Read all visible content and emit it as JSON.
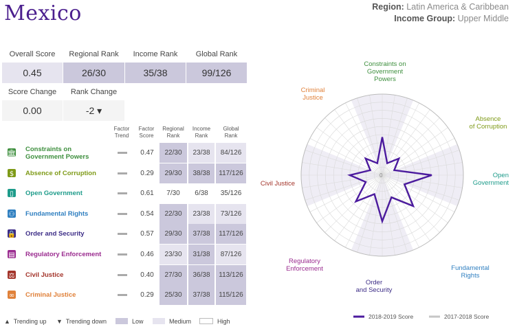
{
  "country": "Mexico",
  "region_label": "Region:",
  "region_value": "Latin America & Caribbean",
  "income_label": "Income Group:",
  "income_value": "Upper Middle",
  "summary": {
    "overall_score_label": "Overall Score",
    "overall_score": "0.45",
    "regional_rank_label": "Regional Rank",
    "regional_rank": "26/30",
    "income_rank_label": "Income Rank",
    "income_rank": "35/38",
    "global_rank_label": "Global Rank",
    "global_rank": "99/126",
    "score_change_label": "Score Change",
    "score_change": "0.00",
    "rank_change_label": "Rank Change",
    "rank_change": "-2 ▾"
  },
  "table": {
    "headers": {
      "factor_trend": [
        "Factor",
        "Trend"
      ],
      "factor_score": [
        "Factor",
        "Score"
      ],
      "regional_rank": [
        "Regional",
        "Rank"
      ],
      "income_rank": [
        "Income",
        "Rank"
      ],
      "global_rank": [
        "Global",
        "Rank"
      ]
    },
    "rows": [
      {
        "name": "Constraints on Government Powers",
        "color": "#3e8f3e",
        "score": "0.47",
        "regional": "22/30",
        "income": "23/38",
        "global": "84/126",
        "levels": [
          "low",
          "med",
          "med"
        ]
      },
      {
        "name": "Absence of Corruption",
        "color": "#7e9a17",
        "score": "0.29",
        "regional": "29/30",
        "income": "38/38",
        "global": "117/126",
        "levels": [
          "low",
          "low",
          "low"
        ]
      },
      {
        "name": "Open Government",
        "color": "#1d9b8a",
        "score": "0.61",
        "regional": "7/30",
        "income": "6/38",
        "global": "35/126",
        "levels": [
          "none",
          "none",
          "none"
        ]
      },
      {
        "name": "Fundamental Rights",
        "color": "#2f7fc0",
        "score": "0.54",
        "regional": "22/30",
        "income": "23/38",
        "global": "73/126",
        "levels": [
          "low",
          "med",
          "med"
        ]
      },
      {
        "name": "Order and Security",
        "color": "#3c2c86",
        "score": "0.57",
        "regional": "29/30",
        "income": "37/38",
        "global": "117/126",
        "levels": [
          "low",
          "low",
          "low"
        ]
      },
      {
        "name": "Regulatory Enforcement",
        "color": "#9a2b8f",
        "score": "0.46",
        "regional": "23/30",
        "income": "31/38",
        "global": "87/126",
        "levels": [
          "med",
          "low",
          "med"
        ]
      },
      {
        "name": "Civil Justice",
        "color": "#a3342a",
        "score": "0.40",
        "regional": "27/30",
        "income": "36/38",
        "global": "113/126",
        "levels": [
          "low",
          "low",
          "low"
        ]
      },
      {
        "name": "Criminal Justice",
        "color": "#e0813a",
        "score": "0.29",
        "regional": "25/30",
        "income": "37/38",
        "global": "115/126",
        "levels": [
          "low",
          "low",
          "low"
        ]
      }
    ]
  },
  "legend": {
    "trending_up": "Trending up",
    "trending_down": "Trending down",
    "low": "Low",
    "medium": "Medium",
    "high": "High"
  },
  "chart_data": {
    "type": "radar",
    "axes": [
      {
        "label": "Constraints on Government Powers",
        "color": "#3e8f3e"
      },
      {
        "label": "Absence of Corruption",
        "color": "#7e9a17"
      },
      {
        "label": "Open Government",
        "color": "#1d9b8a"
      },
      {
        "label": "Fundamental Rights",
        "color": "#2f7fc0"
      },
      {
        "label": "Order and Security",
        "color": "#3c2c86"
      },
      {
        "label": "Regulatory Enforcement",
        "color": "#9a2b8f"
      },
      {
        "label": "Civil Justice",
        "color": "#a3342a"
      },
      {
        "label": "Criminal Justice",
        "color": "#e0813a"
      }
    ],
    "series": [
      {
        "name": "2018-2019 Score",
        "color": "#4b1a9e",
        "values": [
          0.47,
          0.29,
          0.61,
          0.54,
          0.57,
          0.46,
          0.4,
          0.29
        ]
      },
      {
        "name": "2017-2018 Score",
        "color": "#c6c6c6",
        "values": [
          0.46,
          0.29,
          0.6,
          0.52,
          0.55,
          0.45,
          0.4,
          0.3
        ]
      }
    ],
    "center_label": "0",
    "rlim": [
      0,
      1
    ]
  }
}
